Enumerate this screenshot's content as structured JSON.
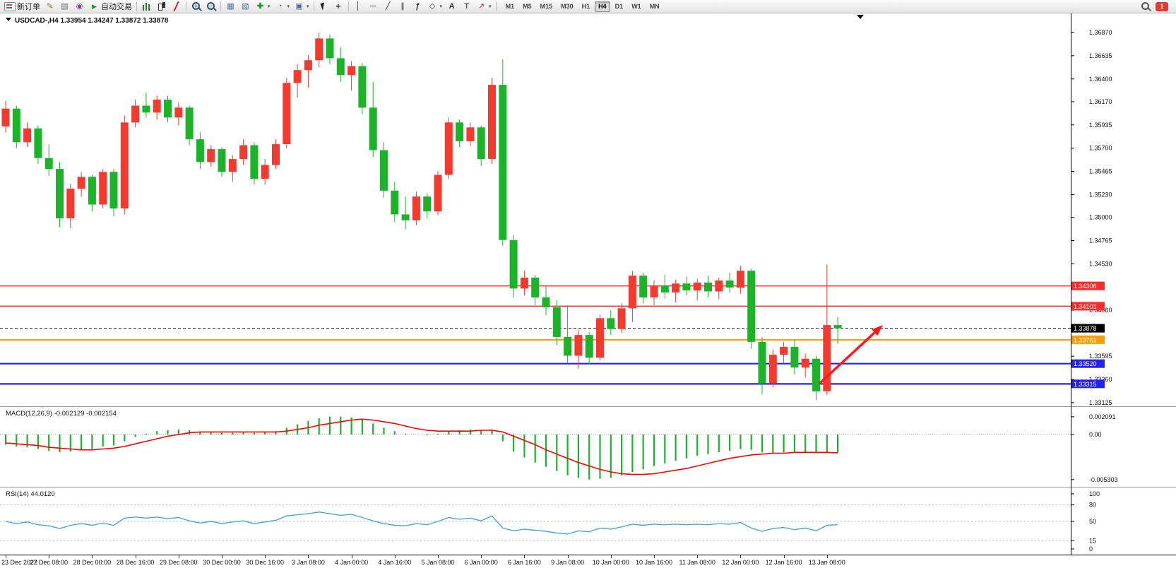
{
  "toolbar": {
    "items": [
      {
        "name": "new-order",
        "icon": "order-ticket",
        "label": "新订单"
      },
      {
        "name": "metaeditor",
        "icon": "pencil"
      },
      {
        "name": "print",
        "icon": "printer"
      },
      {
        "name": "community",
        "icon": "globe"
      },
      {
        "name": "auto-trading",
        "icon": "play",
        "label": "自动交易"
      },
      {
        "sep": true
      },
      {
        "name": "bar-chart",
        "icon": "bars"
      },
      {
        "name": "candlestick-chart",
        "icon": "candles"
      },
      {
        "name": "line-chart",
        "icon": "polyline"
      },
      {
        "sep": true
      },
      {
        "name": "zoom-in",
        "icon": "magnifier-plus"
      },
      {
        "name": "zoom-out",
        "icon": "magnifier-minus"
      },
      {
        "sep": true
      },
      {
        "name": "tile-windows",
        "icon": "tiles"
      },
      {
        "name": "new-chart",
        "icon": "chart-window"
      },
      {
        "name": "indicators-list",
        "icon": "indicator-plus",
        "dropdown": true
      },
      {
        "name": "periods",
        "icon": "clock",
        "dropdown": true
      },
      {
        "name": "templates",
        "icon": "template",
        "dropdown": true
      },
      {
        "sep": true
      },
      {
        "name": "cursor",
        "icon": "cursor-arrow"
      },
      {
        "name": "crosshair",
        "icon": "crosshair"
      },
      {
        "sep": true
      },
      {
        "name": "vertical-line-tool",
        "icon": "vertical-line"
      },
      {
        "name": "horizontal-line-tool",
        "icon": "horizontal-line"
      },
      {
        "name": "trendline-tool",
        "icon": "trendline"
      },
      {
        "name": "channel-tool",
        "icon": "channel"
      },
      {
        "name": "fibonacci-tool",
        "icon": "fibonacci"
      },
      {
        "name": "shapes-tool",
        "icon": "shapes",
        "dropdown": true
      },
      {
        "name": "text-tool",
        "icon": "text-a"
      },
      {
        "name": "label-tool",
        "icon": "label-t"
      },
      {
        "name": "arrows-tool",
        "icon": "arrow",
        "dropdown": true
      },
      {
        "sep": true
      }
    ],
    "timeframes": [
      "M1",
      "M5",
      "M15",
      "M30",
      "H1",
      "H4",
      "D1",
      "W1",
      "MN"
    ],
    "active_timeframe": "H4",
    "notification_count": "1"
  },
  "chart_data": {
    "type": "candlestick",
    "symbol_header": {
      "symbol_period": "USDCAD-,H4",
      "ohlc": "1.33954 1.34247 1.33872 1.33878"
    },
    "quote": {
      "open": "1.33954",
      "high": "1.34247",
      "low": "1.33872",
      "close": "1.33878"
    },
    "x_label_step": 4,
    "x_labels": [
      "23 Dec 2022",
      "27 Dec 08:00",
      "28 Dec 00:00",
      "28 Dec 16:00",
      "29 Dec 08:00",
      "30 Dec 00:00",
      "30 Dec 16:00",
      "3 Jan 08:00",
      "4 Jan 00:00",
      "4 Jan 16:00",
      "5 Jan 08:00",
      "6 Jan 00:00",
      "6 Jan 16:00",
      "9 Jan 08:00",
      "10 Jan 00:00",
      "10 Jan 16:00",
      "11 Jan 08:00",
      "12 Jan 00:00",
      "12 Jan 16:00",
      "13 Jan 08:00"
    ],
    "y_axis": [
      {
        "v": 1.3687,
        "t": "1.36870"
      },
      {
        "v": 1.36635,
        "t": "1.36635"
      },
      {
        "v": 1.364,
        "t": "1.36400"
      },
      {
        "v": 1.3617,
        "t": "1.36170"
      },
      {
        "v": 1.35935,
        "t": "1.35935"
      },
      {
        "v": 1.357,
        "t": "1.35700"
      },
      {
        "v": 1.35465,
        "t": "1.35465"
      },
      {
        "v": 1.3523,
        "t": "1.35230"
      },
      {
        "v": 1.35,
        "t": "1.35000"
      },
      {
        "v": 1.34765,
        "t": "1.34765"
      },
      {
        "v": 1.3453,
        "t": "1.34530"
      },
      {
        "v": 1.3406,
        "t": "1.34060"
      },
      {
        "v": 1.33595,
        "t": "1.33595"
      },
      {
        "v": 1.3336,
        "t": "1.33360"
      },
      {
        "v": 1.33125,
        "t": "1.33125"
      }
    ],
    "hlines": [
      {
        "price": 1.34306,
        "label": "1.34306",
        "color": "#ff2a2a",
        "width": 1.4
      },
      {
        "price": 1.34101,
        "label": "1.34101",
        "color": "#ff2a2a",
        "width": 1.4
      },
      {
        "price": 1.33761,
        "label": "1.33761",
        "color": "#ff9c00",
        "width": 2.2
      },
      {
        "price": 1.3352,
        "label": "1.33520",
        "color": "#2222ee",
        "width": 2.2
      },
      {
        "price": 1.33315,
        "label": "1.33315",
        "color": "#2222ee",
        "width": 2.2
      }
    ],
    "current_price": {
      "v": 1.33878,
      "t": "1.33878",
      "color": "#111111"
    },
    "colors": {
      "up": "#f23a2e",
      "down": "#1cb32b",
      "macd_hist": "#1cb32b",
      "macd_signal": "#ff0000",
      "rsi": "#4aa3e0"
    },
    "candles": [
      [
        1.3592,
        1.3618,
        1.3586,
        1.361
      ],
      [
        1.361,
        1.3613,
        1.357,
        1.3576
      ],
      [
        1.3576,
        1.3596,
        1.3571,
        1.359
      ],
      [
        1.359,
        1.3593,
        1.3554,
        1.356
      ],
      [
        1.356,
        1.3574,
        1.3542,
        1.3549
      ],
      [
        1.3549,
        1.3556,
        1.349,
        1.3499
      ],
      [
        1.3499,
        1.3534,
        1.3489,
        1.3529
      ],
      [
        1.3529,
        1.3546,
        1.3521,
        1.3541
      ],
      [
        1.3541,
        1.3543,
        1.3506,
        1.3513
      ],
      [
        1.3513,
        1.3549,
        1.3509,
        1.3546
      ],
      [
        1.3546,
        1.3549,
        1.3501,
        1.3509
      ],
      [
        1.3509,
        1.3603,
        1.3503,
        1.3596
      ],
      [
        1.3596,
        1.3619,
        1.3591,
        1.3613
      ],
      [
        1.3613,
        1.3626,
        1.3601,
        1.3606
      ],
      [
        1.3606,
        1.3623,
        1.3599,
        1.3619
      ],
      [
        1.3619,
        1.3623,
        1.3596,
        1.3601
      ],
      [
        1.3601,
        1.3616,
        1.3593,
        1.3611
      ],
      [
        1.3611,
        1.3613,
        1.3573,
        1.3579
      ],
      [
        1.3579,
        1.3586,
        1.3549,
        1.3556
      ],
      [
        1.3556,
        1.3573,
        1.3551,
        1.3569
      ],
      [
        1.3569,
        1.3571,
        1.3541,
        1.3546
      ],
      [
        1.3546,
        1.3563,
        1.3536,
        1.3559
      ],
      [
        1.3559,
        1.3579,
        1.3553,
        1.3573
      ],
      [
        1.3573,
        1.3576,
        1.3533,
        1.3539
      ],
      [
        1.3539,
        1.3559,
        1.3533,
        1.3553
      ],
      [
        1.3553,
        1.3579,
        1.3549,
        1.3574
      ],
      [
        1.3574,
        1.3641,
        1.357,
        1.3636
      ],
      [
        1.3636,
        1.3655,
        1.3621,
        1.3649
      ],
      [
        1.3649,
        1.3664,
        1.3631,
        1.3659
      ],
      [
        1.3659,
        1.3687,
        1.3652,
        1.3681
      ],
      [
        1.3681,
        1.3685,
        1.3655,
        1.3661
      ],
      [
        1.3661,
        1.3672,
        1.3637,
        1.3644
      ],
      [
        1.3644,
        1.3658,
        1.3628,
        1.3653
      ],
      [
        1.3653,
        1.3656,
        1.3604,
        1.3611
      ],
      [
        1.3611,
        1.3637,
        1.3561,
        1.3568
      ],
      [
        1.3568,
        1.3576,
        1.352,
        1.3527
      ],
      [
        1.3527,
        1.3536,
        1.3495,
        1.3503
      ],
      [
        1.3503,
        1.3521,
        1.3488,
        1.3497
      ],
      [
        1.3497,
        1.3526,
        1.3492,
        1.3521
      ],
      [
        1.3521,
        1.3524,
        1.3499,
        1.3506
      ],
      [
        1.3506,
        1.3547,
        1.3502,
        1.3543
      ],
      [
        1.3543,
        1.3601,
        1.3539,
        1.3596
      ],
      [
        1.3596,
        1.3599,
        1.3571,
        1.3577
      ],
      [
        1.3577,
        1.3596,
        1.3572,
        1.3591
      ],
      [
        1.3591,
        1.3593,
        1.3552,
        1.3559
      ],
      [
        1.3559,
        1.3641,
        1.3554,
        1.3634
      ],
      [
        1.3634,
        1.366,
        1.3471,
        1.3477
      ],
      [
        1.3477,
        1.3482,
        1.3419,
        1.3428
      ],
      [
        1.3428,
        1.3446,
        1.3421,
        1.3439
      ],
      [
        1.3439,
        1.3442,
        1.3411,
        1.3419
      ],
      [
        1.3419,
        1.3431,
        1.3401,
        1.3409
      ],
      [
        1.3409,
        1.3416,
        1.3371,
        1.3379
      ],
      [
        1.3379,
        1.3411,
        1.3352,
        1.336
      ],
      [
        1.336,
        1.3386,
        1.3347,
        1.3381
      ],
      [
        1.3381,
        1.3384,
        1.3351,
        1.3358
      ],
      [
        1.3358,
        1.3402,
        1.3355,
        1.3398
      ],
      [
        1.3398,
        1.3406,
        1.3381,
        1.3387
      ],
      [
        1.3387,
        1.3413,
        1.3383,
        1.3408
      ],
      [
        1.3408,
        1.3446,
        1.3394,
        1.3441
      ],
      [
        1.3441,
        1.3444,
        1.3413,
        1.3419
      ],
      [
        1.3419,
        1.3436,
        1.3411,
        1.3431
      ],
      [
        1.3431,
        1.3442,
        1.3418,
        1.3424
      ],
      [
        1.3424,
        1.3437,
        1.3414,
        1.3433
      ],
      [
        1.3433,
        1.344,
        1.3421,
        1.3426
      ],
      [
        1.3426,
        1.3438,
        1.3416,
        1.3434
      ],
      [
        1.3434,
        1.3441,
        1.3419,
        1.3425
      ],
      [
        1.3425,
        1.3439,
        1.3417,
        1.3436
      ],
      [
        1.3436,
        1.3444,
        1.3424,
        1.3429
      ],
      [
        1.3429,
        1.3451,
        1.3423,
        1.3446
      ],
      [
        1.3446,
        1.3448,
        1.3367,
        1.3374
      ],
      [
        1.3374,
        1.3379,
        1.3321,
        1.3332
      ],
      [
        1.3332,
        1.3366,
        1.3328,
        1.3361
      ],
      [
        1.3361,
        1.3374,
        1.3352,
        1.3369
      ],
      [
        1.3369,
        1.3376,
        1.3341,
        1.3348
      ],
      [
        1.3348,
        1.3362,
        1.3338,
        1.3357
      ],
      [
        1.3357,
        1.336,
        1.3315,
        1.3324
      ],
      [
        1.3324,
        1.3452,
        1.332,
        1.3391
      ],
      [
        1.3391,
        1.3399,
        1.3372,
        1.33878
      ]
    ],
    "macd": {
      "label": "MACD(12,26,9) -0.002129 -0.002154",
      "axis_labels": [
        {
          "v": 0.002091,
          "t": "0.002091"
        },
        {
          "v": 0,
          "t": "0.00"
        },
        {
          "v": -0.005303,
          "t": "-0.005303"
        }
      ],
      "histogram": [
        -0.0012,
        -0.0014,
        -0.0015,
        -0.0017,
        -0.0019,
        -0.0021,
        -0.002,
        -0.0018,
        -0.0017,
        -0.0014,
        -0.0013,
        -0.0008,
        -0.0003,
        0.0001,
        0.0004,
        0.0005,
        0.0006,
        0.0005,
        0.0003,
        0.0003,
        0.0002,
        0.0002,
        0.0003,
        0.0002,
        0.0003,
        0.0004,
        0.0008,
        0.0012,
        0.0016,
        0.0019,
        0.0021,
        0.0021,
        0.002,
        0.0018,
        0.0013,
        0.0008,
        0.0004,
        0.0001,
        0.0,
        -0.0001,
        0.0001,
        0.0004,
        0.0005,
        0.0006,
        0.0005,
        0.0006,
        -0.0008,
        -0.002,
        -0.0027,
        -0.0033,
        -0.0038,
        -0.0043,
        -0.0048,
        -0.0051,
        -0.0053,
        -0.0052,
        -0.0051,
        -0.0048,
        -0.0044,
        -0.0041,
        -0.0037,
        -0.0034,
        -0.0031,
        -0.0028,
        -0.0025,
        -0.0023,
        -0.0021,
        -0.0019,
        -0.0017,
        -0.0018,
        -0.0021,
        -0.0022,
        -0.0021,
        -0.0021,
        -0.0021,
        -0.0022,
        -0.0021,
        -0.002129
      ],
      "signal": [
        -0.001,
        -0.0011,
        -0.0012,
        -0.0013,
        -0.0015,
        -0.0016,
        -0.0017,
        -0.0018,
        -0.0018,
        -0.0017,
        -0.0016,
        -0.0014,
        -0.0011,
        -0.0008,
        -0.0005,
        -0.0002,
        0.0,
        0.0002,
        0.0003,
        0.0003,
        0.0003,
        0.0003,
        0.0003,
        0.0003,
        0.0003,
        0.0003,
        0.0004,
        0.0006,
        0.0008,
        0.0011,
        0.0013,
        0.0015,
        0.0017,
        0.0018,
        0.0017,
        0.0015,
        0.0013,
        0.001,
        0.0007,
        0.0005,
        0.0004,
        0.0004,
        0.0004,
        0.0004,
        0.0005,
        0.0005,
        0.0003,
        -0.0002,
        -0.0007,
        -0.0012,
        -0.0018,
        -0.0023,
        -0.0028,
        -0.0033,
        -0.0037,
        -0.0041,
        -0.0044,
        -0.0046,
        -0.0047,
        -0.0047,
        -0.0046,
        -0.0044,
        -0.0042,
        -0.004,
        -0.0037,
        -0.0034,
        -0.0031,
        -0.0028,
        -0.0026,
        -0.0024,
        -0.0023,
        -0.0022,
        -0.0022,
        -0.0021,
        -0.0021,
        -0.0021,
        -0.0021,
        -0.002154
      ]
    },
    "rsi": {
      "label": "RSI(14) 44.0120",
      "levels": [
        {
          "v": 100,
          "t": "100"
        },
        {
          "v": 80,
          "t": "80"
        },
        {
          "v": 50,
          "t": "50"
        },
        {
          "v": 15,
          "t": "15"
        },
        {
          "v": 0,
          "t": "0"
        }
      ],
      "values": [
        50,
        46,
        49,
        44,
        42,
        37,
        43,
        46,
        43,
        47,
        43,
        56,
        58,
        56,
        58,
        55,
        57,
        51,
        47,
        50,
        46,
        49,
        51,
        46,
        49,
        52,
        60,
        62,
        64,
        67,
        64,
        61,
        63,
        57,
        51,
        46,
        43,
        42,
        46,
        44,
        50,
        57,
        54,
        56,
        51,
        60,
        38,
        33,
        36,
        34,
        32,
        29,
        27,
        33,
        31,
        38,
        36,
        40,
        45,
        43,
        45,
        44,
        45,
        44,
        45,
        44,
        46,
        45,
        48,
        38,
        32,
        37,
        39,
        35,
        38,
        33,
        43,
        44.012
      ]
    },
    "arrow": {
      "color": "#ff1a1a",
      "from": [
        1160,
        524
      ],
      "to": [
        1250,
        441
      ]
    }
  }
}
